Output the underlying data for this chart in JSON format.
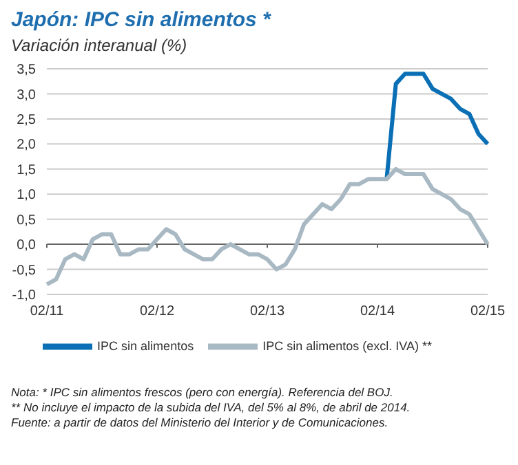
{
  "chart_data": {
    "type": "line",
    "title": "Japón: IPC sin alimentos *",
    "subtitle": "Variación interanual (%)",
    "categories": [
      "02/11",
      null,
      null,
      null,
      null,
      null,
      null,
      null,
      null,
      null,
      null,
      null,
      "02/12",
      null,
      null,
      null,
      null,
      null,
      null,
      null,
      null,
      null,
      null,
      null,
      "02/13",
      null,
      null,
      null,
      null,
      null,
      null,
      null,
      null,
      null,
      null,
      null,
      "02/14",
      null,
      null,
      null,
      null,
      null,
      null,
      null,
      null,
      null,
      null,
      null,
      "02/15"
    ],
    "series": [
      {
        "name": "IPC sin alimentos",
        "color": "#0a6fb5",
        "values": [
          null,
          null,
          null,
          null,
          null,
          null,
          null,
          null,
          null,
          null,
          null,
          null,
          null,
          null,
          null,
          null,
          null,
          null,
          null,
          null,
          null,
          null,
          null,
          null,
          null,
          null,
          null,
          null,
          null,
          null,
          null,
          null,
          null,
          null,
          null,
          null,
          null,
          1.3,
          3.2,
          3.4,
          3.4,
          3.4,
          3.1,
          3.0,
          2.9,
          2.7,
          2.6,
          2.2,
          2.0
        ]
      },
      {
        "name": "IPC sin alimentos (excl. IVA) **",
        "color": "#a9b9c3",
        "values": [
          -0.8,
          -0.7,
          -0.3,
          -0.2,
          -0.3,
          0.1,
          0.2,
          0.2,
          -0.2,
          -0.2,
          -0.1,
          -0.1,
          0.1,
          0.3,
          0.2,
          -0.1,
          -0.2,
          -0.3,
          -0.3,
          -0.1,
          0.0,
          -0.1,
          -0.2,
          -0.2,
          -0.3,
          -0.5,
          -0.4,
          -0.1,
          0.4,
          0.6,
          0.8,
          0.7,
          0.9,
          1.2,
          1.2,
          1.3,
          1.3,
          1.3,
          1.5,
          1.4,
          1.4,
          1.4,
          1.1,
          1.0,
          0.9,
          0.7,
          0.6,
          0.3,
          0.0
        ]
      }
    ],
    "ylim": [
      -1,
      3.5
    ],
    "yticks": [
      {
        "value": -1,
        "label": "-1,0"
      },
      {
        "value": -0.5,
        "label": "-0,5"
      },
      {
        "value": 0,
        "label": "0,0"
      },
      {
        "value": 0.5,
        "label": "0,5"
      },
      {
        "value": 1,
        "label": "1,0"
      },
      {
        "value": 1.5,
        "label": "1,5"
      },
      {
        "value": 2,
        "label": "2,0"
      },
      {
        "value": 2.5,
        "label": "2,5"
      },
      {
        "value": 3,
        "label": "3,0"
      },
      {
        "value": 3.5,
        "label": "3,5"
      }
    ],
    "ref_lines": [
      {
        "axis": "y",
        "value": 0,
        "label": null,
        "color": "#666666"
      }
    ],
    "grid": "y",
    "legend": "bottom",
    "marker": "none",
    "line_style": "solid",
    "annotations": [
      "Nota: * IPC sin alimentos frescos (pero con energía). Referencia del BOJ.",
      "** No incluye el impacto de la subida del IVA, del 5% al 8%, de abril de 2014.",
      "Fuente: a partir de datos del Ministerio del Interior y de Comunicaciones."
    ]
  }
}
